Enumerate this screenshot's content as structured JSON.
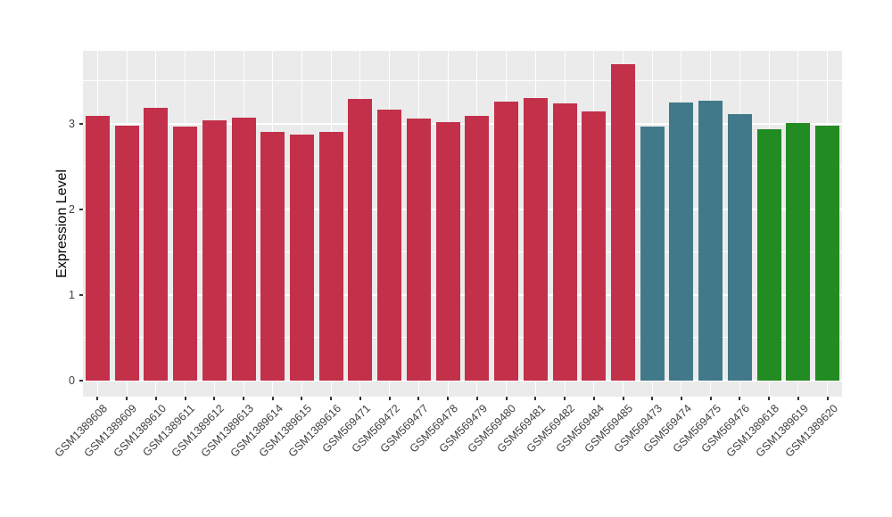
{
  "figure": {
    "background": "#FFFFFF"
  },
  "chart_data": {
    "type": "bar",
    "title": "",
    "xlabel": "",
    "ylabel": "Expression Level",
    "legend": "none",
    "grid": true,
    "panel_background": "#EBEBEB",
    "grid_color": "#FFFFFF",
    "axis_text_color": "#404040",
    "axis_tick_color": "#333333",
    "categories": [
      "GSM1389608",
      "GSM1389609",
      "GSM1389610",
      "GSM1389611",
      "GSM1389612",
      "GSM1389613",
      "GSM1389614",
      "GSM1389615",
      "GSM1389616",
      "GSM569471",
      "GSM569472",
      "GSM569477",
      "GSM569478",
      "GSM569479",
      "GSM569480",
      "GSM569481",
      "GSM569482",
      "GSM569484",
      "GSM569485",
      "GSM569473",
      "GSM569474",
      "GSM569475",
      "GSM569476",
      "GSM1389618",
      "GSM1389619",
      "GSM1389620"
    ],
    "values": [
      3.09,
      2.98,
      3.18,
      2.97,
      3.04,
      3.07,
      2.9,
      2.87,
      2.9,
      3.29,
      3.16,
      3.06,
      3.02,
      3.09,
      3.26,
      3.3,
      3.24,
      3.14,
      3.69,
      2.97,
      3.25,
      3.27,
      3.11,
      2.93,
      3.01,
      2.98
    ],
    "color_groups": [
      "crimson",
      "crimson",
      "crimson",
      "crimson",
      "crimson",
      "crimson",
      "crimson",
      "crimson",
      "crimson",
      "crimson",
      "crimson",
      "crimson",
      "crimson",
      "crimson",
      "crimson",
      "crimson",
      "crimson",
      "crimson",
      "crimson",
      "teal",
      "teal",
      "teal",
      "teal",
      "green",
      "green",
      "green"
    ],
    "group_colors": {
      "crimson": "#C3304A",
      "teal": "#42798A",
      "green": "#228B22"
    },
    "yticks": [
      0,
      1,
      2,
      3
    ],
    "yticks_minor": [
      0.5,
      1.5,
      2.5,
      3.5
    ],
    "ylim": [
      -0.19,
      3.85
    ]
  }
}
